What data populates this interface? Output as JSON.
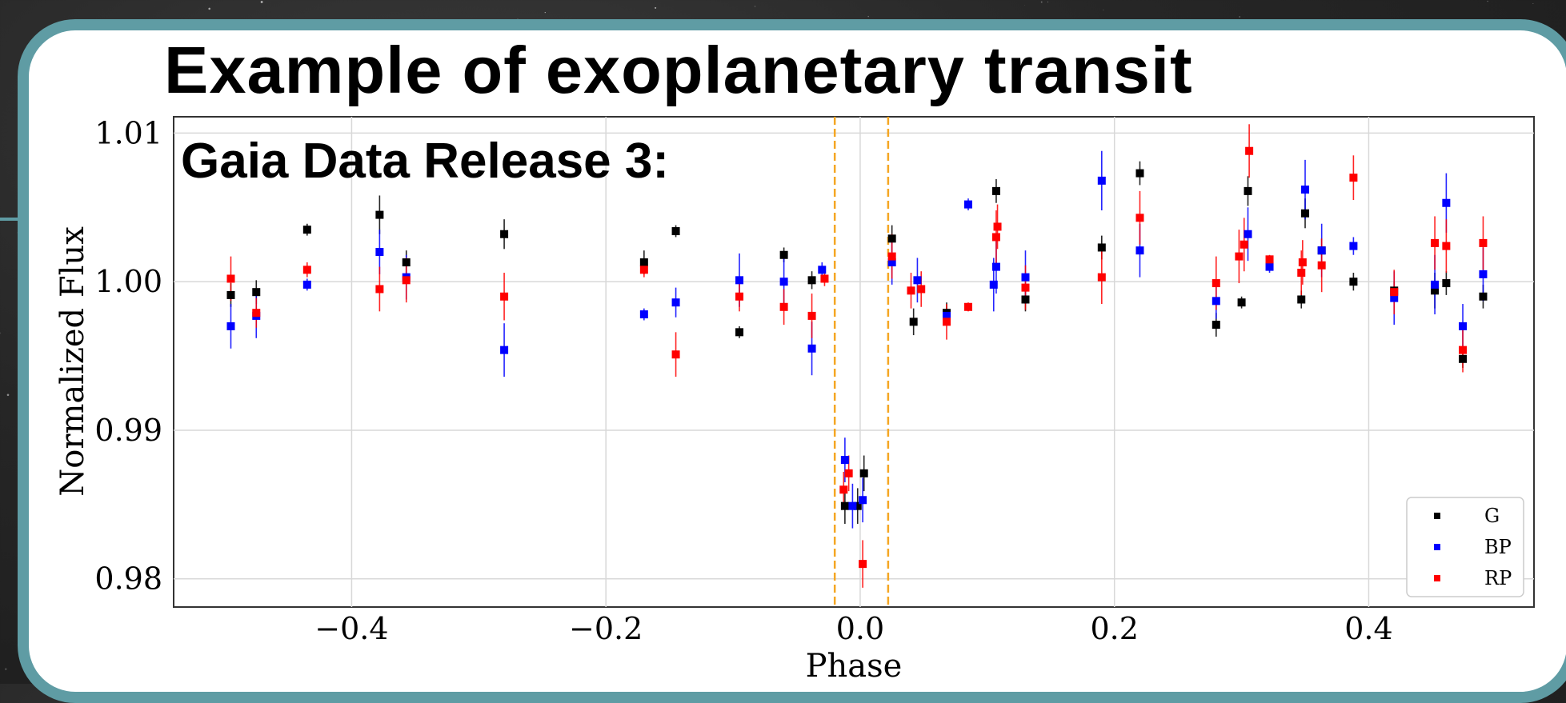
{
  "title": "Example of exoplanetary transit",
  "subtitle": "Gaia Data Release 3:",
  "colors": {
    "frame": "#5f9ca4",
    "G": "#000000",
    "BP": "#0000ff",
    "RP": "#ff0000",
    "transit_lines": "#f5a623"
  },
  "chart_data": {
    "type": "scatter",
    "title": "",
    "xlabel": "Phase",
    "ylabel": "Normalized Flux",
    "xlim": [
      -0.54,
      0.53
    ],
    "ylim": [
      0.9781,
      1.0111
    ],
    "x_ticks": [
      -0.4,
      -0.2,
      0.0,
      0.2,
      0.4
    ],
    "x_tick_labels": [
      "−0.4",
      "−0.2",
      "0.0",
      "0.2",
      "0.4"
    ],
    "y_ticks": [
      0.98,
      0.99,
      1.0,
      1.01
    ],
    "y_tick_labels": [
      "0.98",
      "0.99",
      "1.00",
      "1.01"
    ],
    "grid": true,
    "legend_position": "bottom-right",
    "transit_window": [
      -0.02,
      0.022
    ],
    "series": [
      {
        "name": "G",
        "color": "#000000",
        "points": [
          {
            "x": -0.495,
            "y": 0.9991,
            "err": 0.0008
          },
          {
            "x": -0.475,
            "y": 0.9993,
            "err": 0.0008
          },
          {
            "x": -0.435,
            "y": 1.0035,
            "err": 0.0004
          },
          {
            "x": -0.378,
            "y": 1.0045,
            "err": 0.0013
          },
          {
            "x": -0.357,
            "y": 1.0013,
            "err": 0.0008
          },
          {
            "x": -0.28,
            "y": 1.0032,
            "err": 0.001
          },
          {
            "x": -0.17,
            "y": 1.0013,
            "err": 0.0008
          },
          {
            "x": -0.145,
            "y": 1.0034,
            "err": 0.0004
          },
          {
            "x": -0.095,
            "y": 0.9966,
            "err": 0.0004
          },
          {
            "x": -0.06,
            "y": 1.0018,
            "err": 0.0005
          },
          {
            "x": -0.038,
            "y": 1.0001,
            "err": 0.0006
          },
          {
            "x": -0.012,
            "y": 0.9849,
            "err": 0.0012
          },
          {
            "x": -0.002,
            "y": 0.9849,
            "err": 0.0012
          },
          {
            "x": 0.003,
            "y": 0.9871,
            "err": 0.0012
          },
          {
            "x": 0.025,
            "y": 1.0029,
            "err": 0.0009
          },
          {
            "x": 0.042,
            "y": 0.9973,
            "err": 0.0009
          },
          {
            "x": 0.068,
            "y": 0.9979,
            "err": 0.0007
          },
          {
            "x": 0.107,
            "y": 1.0061,
            "err": 0.0008
          },
          {
            "x": 0.13,
            "y": 0.9988,
            "err": 0.0008
          },
          {
            "x": 0.19,
            "y": 1.0023,
            "err": 0.0008
          },
          {
            "x": 0.22,
            "y": 1.0073,
            "err": 0.0008
          },
          {
            "x": 0.28,
            "y": 0.9971,
            "err": 0.0008
          },
          {
            "x": 0.3,
            "y": 0.9986,
            "err": 0.0004
          },
          {
            "x": 0.305,
            "y": 1.0061,
            "err": 0.001
          },
          {
            "x": 0.347,
            "y": 0.9988,
            "err": 0.0006
          },
          {
            "x": 0.35,
            "y": 1.0046,
            "err": 0.001
          },
          {
            "x": 0.363,
            "y": 1.0021,
            "err": 0.0008
          },
          {
            "x": 0.388,
            "y": 1.0,
            "err": 0.0006
          },
          {
            "x": 0.42,
            "y": 0.9994,
            "err": 0.0006
          },
          {
            "x": 0.452,
            "y": 0.9994,
            "err": 0.0012
          },
          {
            "x": 0.461,
            "y": 0.9999,
            "err": 0.0008
          },
          {
            "x": 0.474,
            "y": 0.9948,
            "err": 0.0006
          },
          {
            "x": 0.49,
            "y": 0.999,
            "err": 0.0008
          }
        ]
      },
      {
        "name": "BP",
        "color": "#0000ff",
        "points": [
          {
            "x": -0.495,
            "y": 0.997,
            "err": 0.0015
          },
          {
            "x": -0.475,
            "y": 0.9977,
            "err": 0.0015
          },
          {
            "x": -0.435,
            "y": 0.9998,
            "err": 0.0004
          },
          {
            "x": -0.378,
            "y": 1.002,
            "err": 0.0015
          },
          {
            "x": -0.357,
            "y": 1.0003,
            "err": 0.0015
          },
          {
            "x": -0.28,
            "y": 0.9954,
            "err": 0.0018
          },
          {
            "x": -0.17,
            "y": 0.9978,
            "err": 0.0004
          },
          {
            "x": -0.145,
            "y": 0.9986,
            "err": 0.001
          },
          {
            "x": -0.095,
            "y": 1.0001,
            "err": 0.0018
          },
          {
            "x": -0.06,
            "y": 1.0,
            "err": 0.0018
          },
          {
            "x": -0.038,
            "y": 0.9955,
            "err": 0.0018
          },
          {
            "x": -0.03,
            "y": 1.0008,
            "err": 0.0005
          },
          {
            "x": -0.012,
            "y": 0.988,
            "err": 0.0015
          },
          {
            "x": -0.006,
            "y": 0.9849,
            "err": 0.0015
          },
          {
            "x": 0.002,
            "y": 0.9853,
            "err": 0.0015
          },
          {
            "x": 0.025,
            "y": 1.0013,
            "err": 0.0015
          },
          {
            "x": 0.045,
            "y": 1.0001,
            "err": 0.0015
          },
          {
            "x": 0.068,
            "y": 0.9977,
            "err": 0.0004
          },
          {
            "x": 0.085,
            "y": 1.0052,
            "err": 0.0004
          },
          {
            "x": 0.105,
            "y": 0.9998,
            "err": 0.0018
          },
          {
            "x": 0.107,
            "y": 1.001,
            "err": 0.0018
          },
          {
            "x": 0.13,
            "y": 1.0003,
            "err": 0.0018
          },
          {
            "x": 0.19,
            "y": 1.0068,
            "err": 0.002
          },
          {
            "x": 0.22,
            "y": 1.0021,
            "err": 0.0018
          },
          {
            "x": 0.28,
            "y": 0.9987,
            "err": 0.0012
          },
          {
            "x": 0.305,
            "y": 1.0032,
            "err": 0.0018
          },
          {
            "x": 0.322,
            "y": 1.001,
            "err": 0.0004
          },
          {
            "x": 0.35,
            "y": 1.0062,
            "err": 0.002
          },
          {
            "x": 0.363,
            "y": 1.0021,
            "err": 0.0018
          },
          {
            "x": 0.388,
            "y": 1.0024,
            "err": 0.0006
          },
          {
            "x": 0.42,
            "y": 0.9989,
            "err": 0.0018
          },
          {
            "x": 0.452,
            "y": 0.9998,
            "err": 0.002
          },
          {
            "x": 0.461,
            "y": 1.0053,
            "err": 0.002
          },
          {
            "x": 0.474,
            "y": 0.997,
            "err": 0.0015
          },
          {
            "x": 0.49,
            "y": 1.0005,
            "err": 0.0018
          }
        ]
      },
      {
        "name": "RP",
        "color": "#ff0000",
        "points": [
          {
            "x": -0.495,
            "y": 1.0002,
            "err": 0.0015
          },
          {
            "x": -0.475,
            "y": 0.9979,
            "err": 0.001
          },
          {
            "x": -0.435,
            "y": 1.0008,
            "err": 0.0005
          },
          {
            "x": -0.378,
            "y": 0.9995,
            "err": 0.0015
          },
          {
            "x": -0.357,
            "y": 1.0001,
            "err": 0.0015
          },
          {
            "x": -0.28,
            "y": 0.999,
            "err": 0.0016
          },
          {
            "x": -0.17,
            "y": 1.0008,
            "err": 0.0005
          },
          {
            "x": -0.145,
            "y": 0.9951,
            "err": 0.0015
          },
          {
            "x": -0.095,
            "y": 0.999,
            "err": 0.001
          },
          {
            "x": -0.06,
            "y": 0.9983,
            "err": 0.0012
          },
          {
            "x": -0.038,
            "y": 0.9977,
            "err": 0.0015
          },
          {
            "x": -0.028,
            "y": 1.0002,
            "err": 0.0005
          },
          {
            "x": -0.013,
            "y": 0.986,
            "err": 0.0012
          },
          {
            "x": -0.009,
            "y": 0.9871,
            "err": 0.0012
          },
          {
            "x": 0.002,
            "y": 0.981,
            "err": 0.0016
          },
          {
            "x": 0.025,
            "y": 1.0017,
            "err": 0.0015
          },
          {
            "x": 0.04,
            "y": 0.9994,
            "err": 0.0012
          },
          {
            "x": 0.048,
            "y": 0.9995,
            "err": 0.0012
          },
          {
            "x": 0.068,
            "y": 0.9973,
            "err": 0.0012
          },
          {
            "x": 0.085,
            "y": 0.9983,
            "err": 0.0003
          },
          {
            "x": 0.107,
            "y": 1.003,
            "err": 0.0018
          },
          {
            "x": 0.108,
            "y": 1.0037,
            "err": 0.0015
          },
          {
            "x": 0.13,
            "y": 0.9996,
            "err": 0.0015
          },
          {
            "x": 0.19,
            "y": 1.0003,
            "err": 0.0018
          },
          {
            "x": 0.22,
            "y": 1.0043,
            "err": 0.0018
          },
          {
            "x": 0.28,
            "y": 0.9999,
            "err": 0.0018
          },
          {
            "x": 0.298,
            "y": 1.0017,
            "err": 0.0018
          },
          {
            "x": 0.302,
            "y": 1.0025,
            "err": 0.0018
          },
          {
            "x": 0.306,
            "y": 1.0088,
            "err": 0.0018
          },
          {
            "x": 0.322,
            "y": 1.0015,
            "err": 0.0003
          },
          {
            "x": 0.347,
            "y": 1.0006,
            "err": 0.0015
          },
          {
            "x": 0.348,
            "y": 1.0013,
            "err": 0.0015
          },
          {
            "x": 0.363,
            "y": 1.0011,
            "err": 0.0018
          },
          {
            "x": 0.388,
            "y": 1.007,
            "err": 0.0015
          },
          {
            "x": 0.42,
            "y": 0.9993,
            "err": 0.0015
          },
          {
            "x": 0.452,
            "y": 1.0026,
            "err": 0.0018
          },
          {
            "x": 0.461,
            "y": 1.0024,
            "err": 0.0018
          },
          {
            "x": 0.474,
            "y": 0.9954,
            "err": 0.0015
          },
          {
            "x": 0.49,
            "y": 1.0026,
            "err": 0.0018
          }
        ]
      }
    ]
  }
}
